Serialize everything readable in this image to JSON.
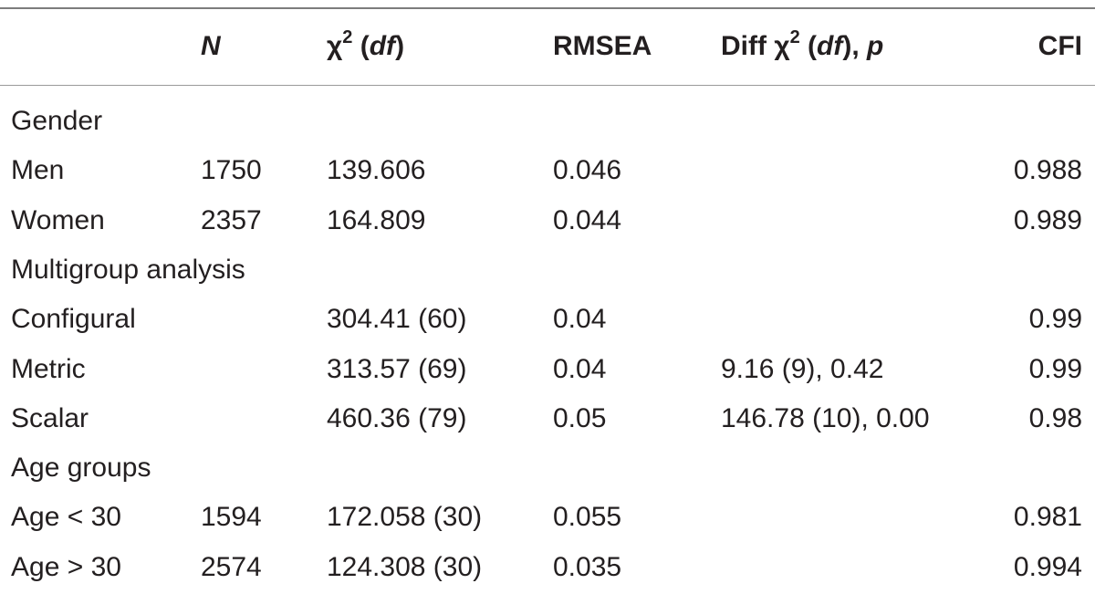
{
  "headers": {
    "col0": "",
    "n": "N",
    "chi_symbol": "χ",
    "chi_exp": "2",
    "df": "df",
    "rmsea": "RMSEA",
    "diff_prefix": "Diff χ",
    "diff_exp": "2",
    "diff_df": "df",
    "diff_sep": "), ",
    "diff_p": "p",
    "cfi": "CFI"
  },
  "rows": [
    {
      "label": "Gender",
      "n": "",
      "chi": "",
      "rmsea": "",
      "diff": "",
      "cfi": ""
    },
    {
      "label": "Men",
      "n": "1750",
      "chi": "139.606",
      "rmsea": "0.046",
      "diff": "",
      "cfi": "0.988"
    },
    {
      "label": "Women",
      "n": "2357",
      "chi": "164.809",
      "rmsea": "0.044",
      "diff": "",
      "cfi": "0.989"
    },
    {
      "label": "Multigroup analysis",
      "n": "",
      "chi": "",
      "rmsea": "",
      "diff": "",
      "cfi": ""
    },
    {
      "label": "Configural",
      "n": "",
      "chi": "304.41 (60)",
      "rmsea": "0.04",
      "diff": "",
      "cfi": "0.99"
    },
    {
      "label": "Metric",
      "n": "",
      "chi": "313.57 (69)",
      "rmsea": "0.04",
      "diff": "9.16 (9), 0.42",
      "cfi": "0.99"
    },
    {
      "label": "Scalar",
      "n": "",
      "chi": "460.36 (79)",
      "rmsea": "0.05",
      "diff": "146.78 (10), 0.00",
      "cfi": "0.98"
    },
    {
      "label": "Age groups",
      "n": "",
      "chi": "",
      "rmsea": "",
      "diff": "",
      "cfi": ""
    },
    {
      "label": "Age < 30",
      "n": "1594",
      "chi": "172.058 (30)",
      "rmsea": "0.055",
      "diff": "",
      "cfi": "0.981"
    },
    {
      "label": "Age > 30",
      "n": "2574",
      "chi": "124.308 (30)",
      "rmsea": "0.035",
      "diff": "",
      "cfi": "0.994"
    }
  ]
}
